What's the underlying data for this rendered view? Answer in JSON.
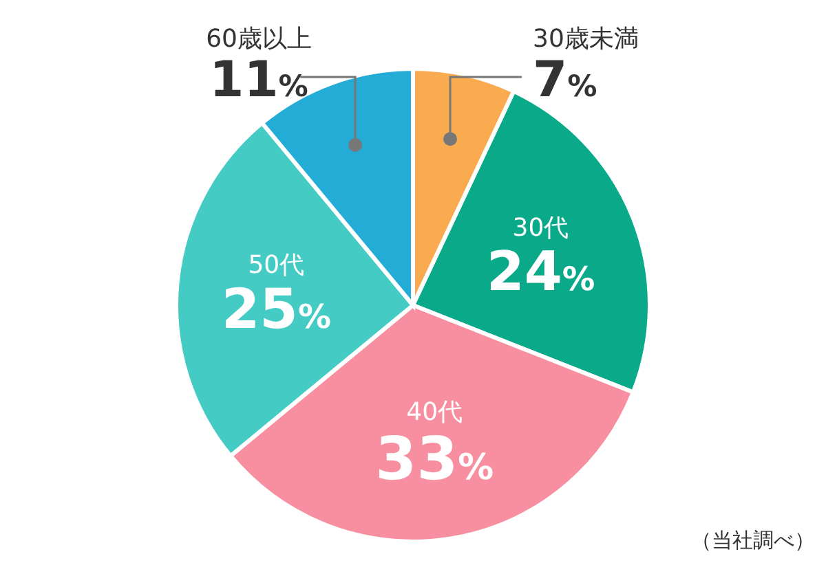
{
  "chart_data": {
    "type": "pie",
    "categories": [
      "30歳未満",
      "30代",
      "40代",
      "50代",
      "60歳以上"
    ],
    "values": [
      7,
      24,
      33,
      25,
      11
    ],
    "colors": [
      "#fbab4f",
      "#0aa98a",
      "#f78fa0",
      "#44cbc4",
      "#22acd6"
    ],
    "value_labels": [
      "7%",
      "24%",
      "33%",
      "25%",
      "11%"
    ],
    "annotations": [
      "（当社調べ）"
    ]
  }
}
